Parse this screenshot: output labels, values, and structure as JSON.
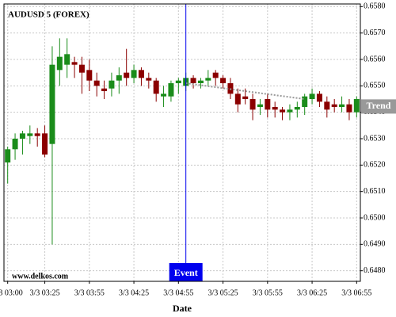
{
  "chart_data": {
    "type": "candlestick",
    "title": "AUDUSD 5 (FOREX)",
    "xlabel": "Date",
    "watermark": "www.delkos.com",
    "categories": [
      "3/3 03:00",
      null,
      null,
      null,
      null,
      "3/3 03:25",
      null,
      null,
      null,
      null,
      null,
      "3/3 03:55",
      null,
      null,
      null,
      null,
      null,
      "3/3 04:25",
      null,
      null,
      null,
      null,
      null,
      "3/3 04:55",
      null,
      null,
      null,
      null,
      null,
      "3/3 05:25",
      null,
      null,
      null,
      null,
      null,
      "3/3 05:55",
      null,
      null,
      null,
      null,
      null,
      "3/3 06:25",
      null,
      null,
      null,
      null,
      null,
      "3/3 06:55"
    ],
    "open": [
      0.6521,
      0.6526,
      0.653,
      0.6531,
      0.6532,
      0.6532,
      0.6528,
      0.6556,
      0.6558,
      0.6559,
      0.6558,
      0.6556,
      0.6552,
      0.6549,
      0.6549,
      0.6552,
      0.6555,
      0.6553,
      0.6556,
      0.6553,
      0.6552,
      0.6546,
      0.6546,
      0.6551,
      0.655,
      0.6553,
      0.6551,
      0.6552,
      0.6555,
      0.6553,
      0.6551,
      0.6547,
      0.6546,
      0.6545,
      0.6542,
      0.6545,
      0.6542,
      0.6541,
      0.654,
      0.6541,
      0.6542,
      0.6545,
      0.6547,
      0.6544,
      0.6543,
      0.6542,
      0.6543,
      0.654
    ],
    "high": [
      0.6527,
      0.6532,
      0.6533,
      0.6535,
      0.6534,
      0.6535,
      0.6565,
      0.6568,
      0.6568,
      0.6561,
      0.6561,
      0.656,
      0.6555,
      0.6552,
      0.6555,
      0.6557,
      0.6564,
      0.6558,
      0.6557,
      0.6555,
      0.6553,
      0.655,
      0.6552,
      0.6553,
      0.6555,
      0.6554,
      0.6553,
      0.6556,
      0.6556,
      0.6554,
      0.6553,
      0.6549,
      0.6549,
      0.6547,
      0.6545,
      0.6547,
      0.6544,
      0.6542,
      0.6543,
      0.6544,
      0.6547,
      0.6549,
      0.6548,
      0.6546,
      0.6545,
      0.6546,
      0.6545,
      0.6546
    ],
    "low": [
      0.6513,
      0.6522,
      0.6524,
      0.6528,
      0.6527,
      0.6523,
      0.649,
      0.655,
      0.6553,
      0.6553,
      0.6547,
      0.6548,
      0.6546,
      0.6545,
      0.6546,
      0.6547,
      0.655,
      0.6551,
      0.655,
      0.6549,
      0.6544,
      0.6542,
      0.6544,
      0.6547,
      0.6548,
      0.6549,
      0.6549,
      0.655,
      0.655,
      0.6549,
      0.6545,
      0.654,
      0.6543,
      0.6537,
      0.6539,
      0.6538,
      0.6538,
      0.6537,
      0.6537,
      0.6538,
      0.6539,
      0.6543,
      0.6542,
      0.6538,
      0.654,
      0.654,
      0.6537,
      0.6538
    ],
    "close": [
      0.6526,
      0.653,
      0.6532,
      0.6532,
      0.6531,
      0.6524,
      0.6558,
      0.6561,
      0.6562,
      0.6558,
      0.6555,
      0.6552,
      0.655,
      0.6548,
      0.6552,
      0.6554,
      0.6553,
      0.6556,
      0.6553,
      0.6552,
      0.6547,
      0.6547,
      0.6551,
      0.6552,
      0.6553,
      0.6551,
      0.6552,
      0.6553,
      0.6553,
      0.6551,
      0.6547,
      0.6543,
      0.6545,
      0.6541,
      0.6543,
      0.6541,
      0.6541,
      0.654,
      0.6541,
      0.6542,
      0.6546,
      0.6547,
      0.6544,
      0.6541,
      0.6542,
      0.6543,
      0.654,
      0.6545
    ],
    "up_color": "#1a8c1a",
    "down_color": "#8b0000",
    "ylim": [
      0.6476,
      0.6581
    ],
    "yticks": [
      {
        "value": 0.648,
        "label": "0.6480"
      },
      {
        "value": 0.649,
        "label": "0.6490"
      },
      {
        "value": 0.65,
        "label": "0.6500"
      },
      {
        "value": 0.651,
        "label": "0.6510"
      },
      {
        "value": 0.652,
        "label": "0.6520"
      },
      {
        "value": 0.653,
        "label": "0.6530"
      },
      {
        "value": 0.654,
        "label": "0.6540"
      },
      {
        "value": 0.655,
        "label": "0.6550"
      },
      {
        "value": 0.656,
        "label": "0.6560"
      },
      {
        "value": 0.657,
        "label": "0.6570"
      },
      {
        "value": 0.658,
        "label": "0.6580"
      }
    ],
    "grid": true,
    "event": {
      "label": "Event",
      "x": 24,
      "color": "#0000ee"
    },
    "trend": {
      "label": "Trend",
      "x": [
        24,
        40
      ],
      "y": [
        0.6551,
        0.6545
      ],
      "color": "#999999"
    }
  }
}
